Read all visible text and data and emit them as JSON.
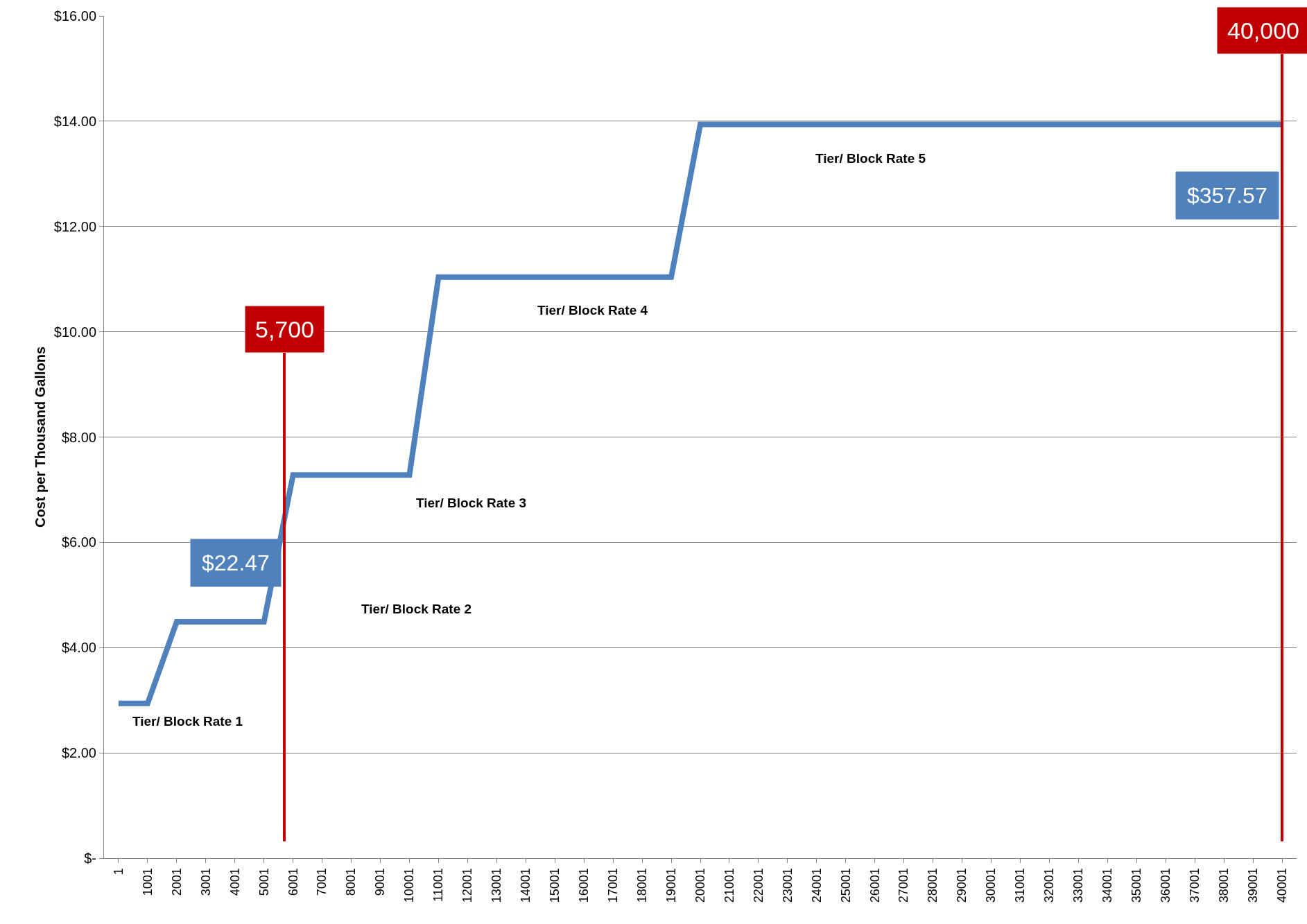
{
  "chart_data": {
    "type": "line",
    "ylabel": "Cost per Thousand Gallons",
    "x": [
      1,
      1001,
      2001,
      3001,
      4001,
      5001,
      6001,
      7001,
      8001,
      9001,
      10001,
      11001,
      12001,
      13001,
      14001,
      15001,
      16001,
      17001,
      18001,
      19001,
      20001,
      21001,
      22001,
      23001,
      24001,
      25001,
      26001,
      27001,
      28001,
      29001,
      30001,
      31001,
      32001,
      33001,
      34001,
      35001,
      36001,
      37001,
      38001,
      39001,
      40001
    ],
    "series": [
      {
        "color": "#4f81bd",
        "values": [
          2.94,
          2.94,
          4.49,
          4.49,
          4.49,
          4.49,
          7.28,
          7.28,
          7.28,
          7.28,
          7.28,
          11.04,
          11.04,
          11.04,
          11.04,
          11.04,
          11.04,
          11.04,
          11.04,
          11.04,
          13.94,
          13.94,
          13.94,
          13.94,
          13.94,
          13.94,
          13.94,
          13.94,
          13.94,
          13.94,
          13.94,
          13.94,
          13.94,
          13.94,
          13.94,
          13.94,
          13.94,
          13.94,
          13.94,
          13.94,
          13.94
        ]
      }
    ],
    "xlim": [
      -499,
      40501
    ],
    "xticks": [
      1,
      1001,
      2001,
      3001,
      4001,
      5001,
      6001,
      7001,
      8001,
      9001,
      10001,
      11001,
      12001,
      13001,
      14001,
      15001,
      16001,
      17001,
      18001,
      19001,
      20001,
      21001,
      22001,
      23001,
      24001,
      25001,
      26001,
      27001,
      28001,
      29001,
      30001,
      31001,
      32001,
      33001,
      34001,
      35001,
      36001,
      37001,
      38001,
      39001,
      40001
    ],
    "ylim": [
      0,
      16
    ],
    "yticks": [
      {
        "value": 0,
        "label": "$-"
      },
      {
        "value": 2,
        "label": "$2.00"
      },
      {
        "value": 4,
        "label": "$4.00"
      },
      {
        "value": 6,
        "label": "$6.00"
      },
      {
        "value": 8,
        "label": "$8.00"
      },
      {
        "value": 10,
        "label": "$10.00"
      },
      {
        "value": 12,
        "label": "$12.00"
      },
      {
        "value": 14,
        "label": "$14.00"
      },
      {
        "value": 16,
        "label": "$16.00"
      }
    ],
    "grid": "y",
    "marker": "none",
    "line_style": "solid",
    "legend": false,
    "ref_lines": [
      {
        "axis": "x",
        "value": 5700,
        "label": "5,700",
        "color": "#c00000"
      },
      {
        "axis": "x",
        "value": 40000,
        "label": "40,000",
        "color": "#c00000"
      }
    ],
    "annotations": [
      "Tier/ Block Rate 1",
      "Tier/ Block Rate 2",
      "Tier/ Block Rate 3",
      "Tier/ Block Rate 4",
      "Tier/ Block Rate 5",
      "$22.47",
      "$357.57"
    ]
  }
}
